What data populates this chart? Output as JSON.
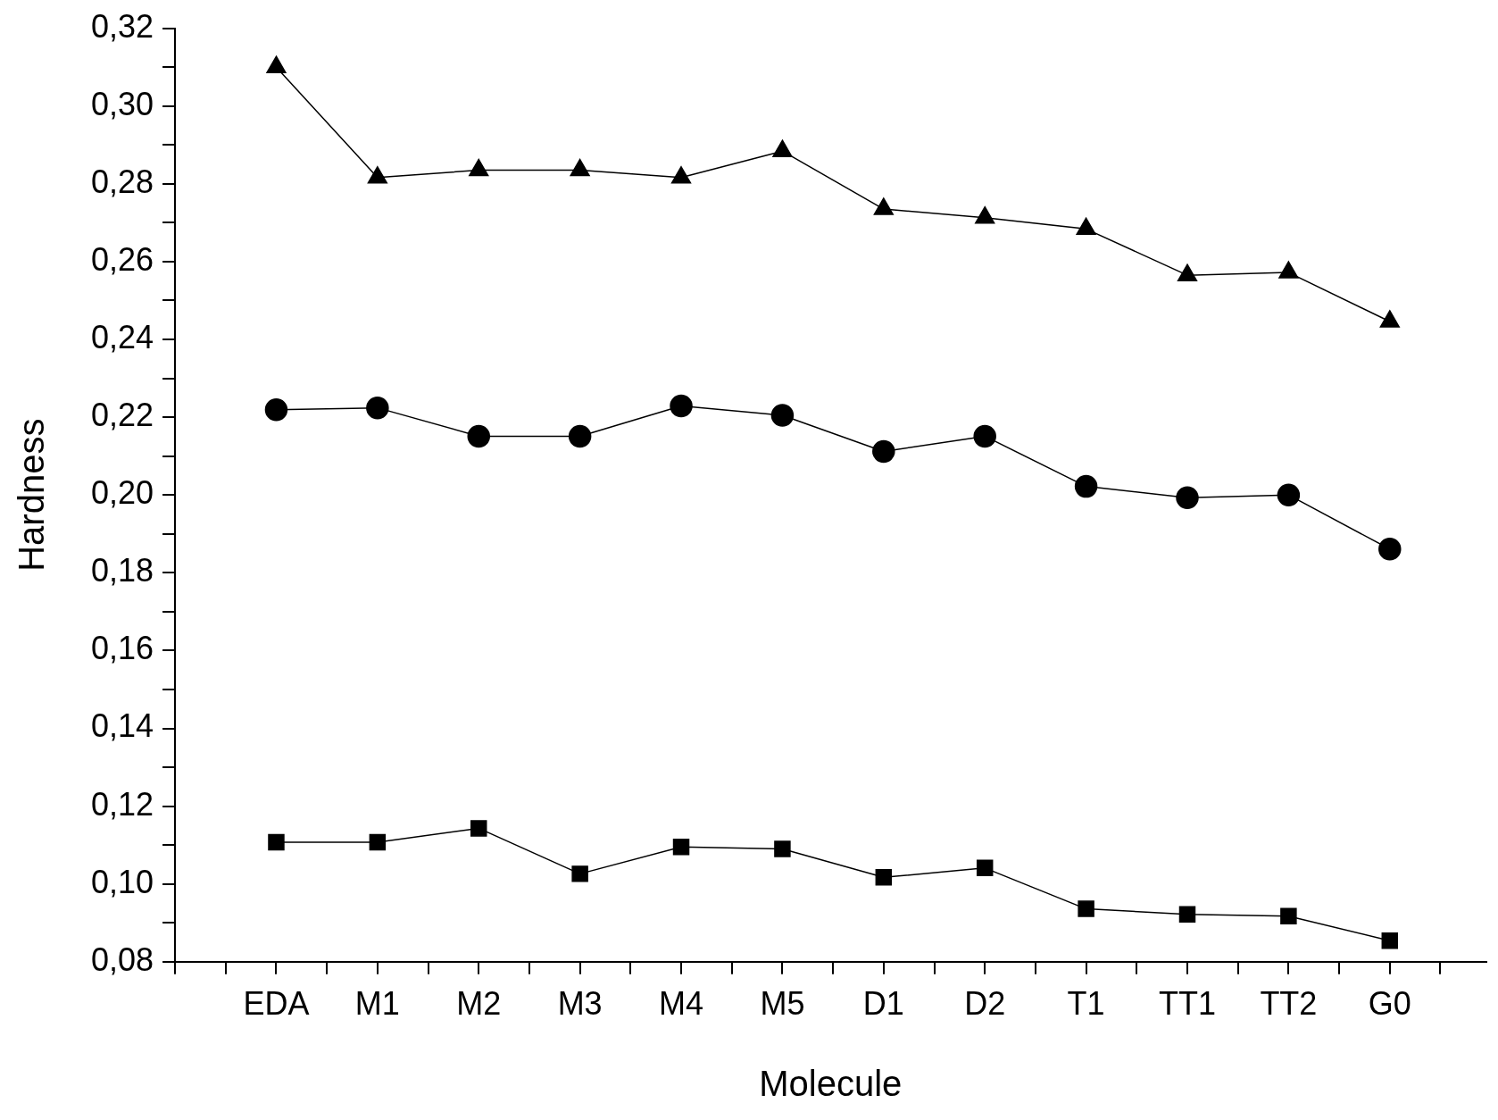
{
  "chart_data": {
    "type": "line",
    "xlabel": "Molecule",
    "ylabel": "Hardness",
    "categories": [
      "EDA",
      "M1",
      "M2",
      "M3",
      "M4",
      "M5",
      "D1",
      "D2",
      "T1",
      "TT1",
      "TT2",
      "G0"
    ],
    "series": [
      {
        "color": "#000000",
        "marker": "triangle",
        "values": [
          0.31,
          0.2816,
          0.2835,
          0.2835,
          0.2816,
          0.2884,
          0.2735,
          0.2713,
          0.2684,
          0.2565,
          0.2572,
          0.2446
        ]
      },
      {
        "color": "#000000",
        "marker": "circle",
        "values": [
          0.2219,
          0.2224,
          0.2151,
          0.2151,
          0.2229,
          0.2205,
          0.2112,
          0.2151,
          0.2022,
          0.1993,
          0.2,
          0.1861
        ]
      },
      {
        "color": "#000000",
        "marker": "square",
        "values": [
          0.1107,
          0.1107,
          0.1143,
          0.1026,
          0.1095,
          0.109,
          0.1017,
          0.1041,
          0.0936,
          0.0922,
          0.0917,
          0.0854
        ]
      }
    ],
    "ylim": [
      0.08,
      0.32
    ],
    "yticks": [
      {
        "value": 0.08,
        "label": "0,08"
      },
      {
        "value": 0.09,
        "label": null
      },
      {
        "value": 0.1,
        "label": "0,10"
      },
      {
        "value": 0.11,
        "label": null
      },
      {
        "value": 0.12,
        "label": "0,12"
      },
      {
        "value": 0.13,
        "label": null
      },
      {
        "value": 0.14,
        "label": "0,14"
      },
      {
        "value": 0.15,
        "label": null
      },
      {
        "value": 0.16,
        "label": "0,16"
      },
      {
        "value": 0.17,
        "label": null
      },
      {
        "value": 0.18,
        "label": "0,18"
      },
      {
        "value": 0.19,
        "label": null
      },
      {
        "value": 0.2,
        "label": "0,20"
      },
      {
        "value": 0.21,
        "label": null
      },
      {
        "value": 0.22,
        "label": "0,22"
      },
      {
        "value": 0.23,
        "label": null
      },
      {
        "value": 0.24,
        "label": "0,24"
      },
      {
        "value": 0.25,
        "label": null
      },
      {
        "value": 0.26,
        "label": "0,26"
      },
      {
        "value": 0.27,
        "label": null
      },
      {
        "value": 0.28,
        "label": "0,28"
      },
      {
        "value": 0.29,
        "label": null
      },
      {
        "value": 0.3,
        "label": "0,30"
      },
      {
        "value": 0.31,
        "label": null
      },
      {
        "value": 0.32,
        "label": "0,32"
      }
    ],
    "grid": false,
    "legend": false,
    "line_style": "solid"
  }
}
